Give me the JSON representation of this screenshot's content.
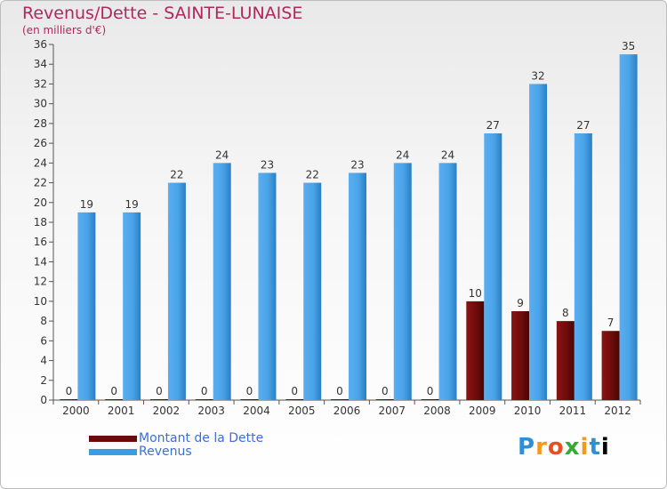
{
  "title": "Revenus/Dette - SAINTE-LUNAISE",
  "subtitle": "(en milliers d'€)",
  "brand": "Proxiti",
  "chart_data": {
    "type": "bar",
    "categories": [
      "2000",
      "2001",
      "2002",
      "2003",
      "2004",
      "2005",
      "2006",
      "2007",
      "2008",
      "2009",
      "2010",
      "2011",
      "2012"
    ],
    "series": [
      {
        "name": "Montant de la Dette",
        "values": [
          0,
          0,
          0,
          0,
          0,
          0,
          0,
          0,
          0,
          10,
          9,
          8,
          7
        ],
        "color": "#6a0a0a"
      },
      {
        "name": "Revenus",
        "values": [
          19,
          19,
          22,
          24,
          23,
          22,
          23,
          24,
          24,
          27,
          32,
          27,
          35
        ],
        "color": "#3d9be0"
      }
    ],
    "ylim": [
      0,
      36
    ],
    "yticks": [
      0,
      2,
      4,
      6,
      8,
      10,
      12,
      14,
      16,
      18,
      20,
      22,
      24,
      26,
      28,
      30,
      32,
      34,
      36
    ],
    "grid": false,
    "legend": "bottom-left"
  }
}
